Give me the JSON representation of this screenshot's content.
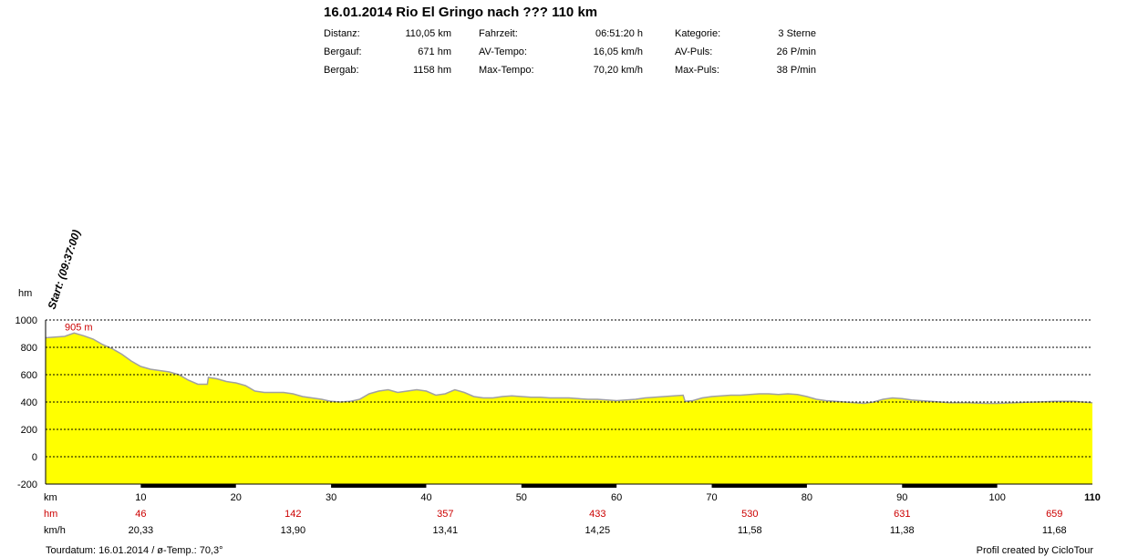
{
  "header": {
    "title": "16.01.2014 Rio El Gringo nach ??? 110 km",
    "stats": [
      {
        "label": "Distanz:",
        "value": "110,05 km"
      },
      {
        "label": "Bergauf:",
        "value": "671 hm"
      },
      {
        "label": "Bergab:",
        "value": "1158 hm"
      },
      {
        "label": "Fahrzeit:",
        "value": "06:51:20 h"
      },
      {
        "label": "AV-Tempo:",
        "value": "16,05 km/h"
      },
      {
        "label": "Max-Tempo:",
        "value": "70,20 km/h"
      },
      {
        "label": "Kategorie:",
        "value": "3 Sterne"
      },
      {
        "label": "AV-Puls:",
        "value": "26 P/min"
      },
      {
        "label": "Max-Puls:",
        "value": "38 P/min"
      }
    ]
  },
  "footer": {
    "left": "Tourdatum: 16.01.2014  /  ø-Temp.: 70,3°",
    "right": "Profil created by CicloTour"
  },
  "colors": {
    "fill": "#ffff00",
    "outline": "#a0a0a0",
    "red": "#cc0000"
  },
  "chart_data": {
    "type": "area",
    "ylabel": "hm",
    "xlabel": "km",
    "ylim": [
      -200,
      1000
    ],
    "xlim": [
      0,
      110
    ],
    "yticks": [
      -200,
      0,
      200,
      400,
      600,
      800,
      1000
    ],
    "xticks": [
      10,
      20,
      30,
      40,
      50,
      60,
      70,
      80,
      90,
      100,
      110
    ],
    "grid": "dotted horizontal",
    "start_label": "Start: (09:37:00)",
    "max_label": "905 m",
    "max_point": {
      "x": 3,
      "y": 905
    },
    "row_labels": {
      "hm": "hm",
      "kmh": "km/h",
      "km": "km"
    },
    "segment_hm": [
      "46",
      "142",
      "357",
      "433",
      "530",
      "631",
      "659"
    ],
    "segment_kmh": [
      "20,33",
      "13,90",
      "13,41",
      "14,25",
      "11,58",
      "11,38",
      "11,68"
    ],
    "segment_x": [
      10,
      26,
      42,
      58,
      74,
      90,
      106
    ],
    "profile": [
      [
        0,
        870
      ],
      [
        1,
        875
      ],
      [
        2,
        880
      ],
      [
        3,
        905
      ],
      [
        4,
        885
      ],
      [
        5,
        860
      ],
      [
        6,
        820
      ],
      [
        7,
        790
      ],
      [
        8,
        750
      ],
      [
        9,
        700
      ],
      [
        10,
        660
      ],
      [
        11,
        640
      ],
      [
        12,
        630
      ],
      [
        13,
        620
      ],
      [
        14,
        600
      ],
      [
        15,
        560
      ],
      [
        16,
        530
      ],
      [
        17,
        530
      ],
      [
        17.1,
        580
      ],
      [
        18,
        570
      ],
      [
        19,
        550
      ],
      [
        20,
        540
      ],
      [
        21,
        520
      ],
      [
        22,
        480
      ],
      [
        23,
        470
      ],
      [
        24,
        470
      ],
      [
        25,
        470
      ],
      [
        26,
        460
      ],
      [
        27,
        440
      ],
      [
        28,
        430
      ],
      [
        29,
        420
      ],
      [
        30,
        405
      ],
      [
        31,
        400
      ],
      [
        32,
        405
      ],
      [
        33,
        420
      ],
      [
        34,
        460
      ],
      [
        35,
        480
      ],
      [
        36,
        490
      ],
      [
        37,
        470
      ],
      [
        38,
        480
      ],
      [
        39,
        490
      ],
      [
        40,
        480
      ],
      [
        41,
        450
      ],
      [
        42,
        460
      ],
      [
        43,
        490
      ],
      [
        44,
        470
      ],
      [
        45,
        440
      ],
      [
        46,
        430
      ],
      [
        47,
        430
      ],
      [
        48,
        440
      ],
      [
        49,
        445
      ],
      [
        50,
        440
      ],
      [
        51,
        435
      ],
      [
        52,
        435
      ],
      [
        53,
        430
      ],
      [
        54,
        430
      ],
      [
        55,
        430
      ],
      [
        56,
        425
      ],
      [
        57,
        420
      ],
      [
        58,
        420
      ],
      [
        59,
        415
      ],
      [
        60,
        410
      ],
      [
        61,
        415
      ],
      [
        62,
        420
      ],
      [
        63,
        430
      ],
      [
        64,
        435
      ],
      [
        65,
        440
      ],
      [
        66,
        445
      ],
      [
        67,
        450
      ],
      [
        67.2,
        405
      ],
      [
        68,
        410
      ],
      [
        69,
        430
      ],
      [
        70,
        440
      ],
      [
        71,
        445
      ],
      [
        72,
        450
      ],
      [
        73,
        450
      ],
      [
        74,
        455
      ],
      [
        75,
        460
      ],
      [
        76,
        460
      ],
      [
        77,
        455
      ],
      [
        78,
        460
      ],
      [
        79,
        455
      ],
      [
        80,
        440
      ],
      [
        81,
        420
      ],
      [
        82,
        410
      ],
      [
        83,
        405
      ],
      [
        84,
        400
      ],
      [
        85,
        395
      ],
      [
        86,
        390
      ],
      [
        87,
        400
      ],
      [
        88,
        420
      ],
      [
        89,
        430
      ],
      [
        90,
        425
      ],
      [
        91,
        415
      ],
      [
        92,
        410
      ],
      [
        93,
        405
      ],
      [
        94,
        400
      ],
      [
        95,
        395
      ],
      [
        96,
        395
      ],
      [
        97,
        395
      ],
      [
        98,
        392
      ],
      [
        99,
        390
      ],
      [
        100,
        390
      ],
      [
        101,
        393
      ],
      [
        102,
        395
      ],
      [
        103,
        398
      ],
      [
        104,
        400
      ],
      [
        105,
        402
      ],
      [
        106,
        405
      ],
      [
        107,
        405
      ],
      [
        108,
        405
      ],
      [
        109,
        400
      ],
      [
        110,
        395
      ]
    ]
  }
}
